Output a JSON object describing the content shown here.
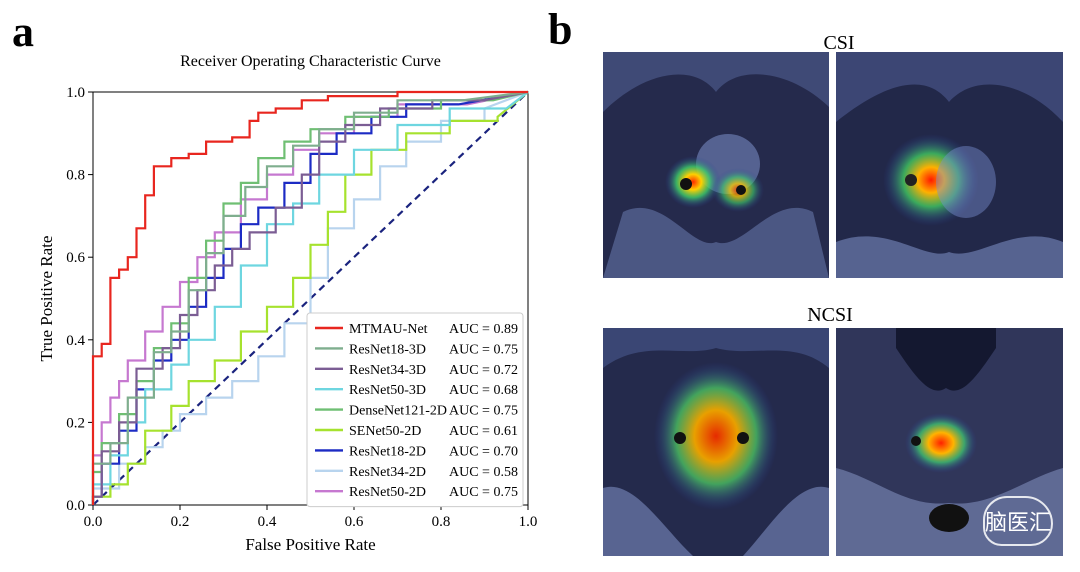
{
  "panel_a": {
    "letter": "a"
  },
  "panel_b": {
    "letter": "b",
    "label_top": "CSI",
    "label_bottom": "NCSI"
  },
  "colors": {
    "MTMAU-Net": "#e8261f",
    "ResNet18-3D": "#7fae8e",
    "ResNet34-3D": "#7b5d94",
    "ResNet50-3D": "#6ed6e0",
    "DenseNet121-2D": "#6fbf73",
    "SENet50-2D": "#a6e22e",
    "ResNet18-2D": "#1c2bc4",
    "ResNet34-2D": "#b8d4ee",
    "ResNet50-2D": "#c678d0",
    "chance": "#1a237e"
  },
  "watermark": "脑医汇",
  "chart_data": {
    "type": "line",
    "title": "Receiver Operating Characteristic Curve",
    "xlabel": "False Positive Rate",
    "ylabel": "True Positive Rate",
    "xlim": [
      0,
      1.0
    ],
    "ylim": [
      0,
      1.0
    ],
    "xticks": [
      "0.0",
      "0.2",
      "0.4",
      "0.6",
      "0.8",
      "1.0"
    ],
    "yticks": [
      "0.0",
      "0.2",
      "0.4",
      "0.6",
      "0.8",
      "1.0"
    ],
    "grid": false,
    "legend_position": "lower-right",
    "series": [
      {
        "name": "MTMAU-Net",
        "auc": "AUC = 0.89",
        "x": [
          0,
          0,
          0.02,
          0.02,
          0.04,
          0.04,
          0.06,
          0.06,
          0.08,
          0.08,
          0.1,
          0.1,
          0.12,
          0.12,
          0.14,
          0.14,
          0.18,
          0.18,
          0.22,
          0.22,
          0.26,
          0.26,
          0.32,
          0.32,
          0.36,
          0.36,
          0.38,
          0.38,
          0.42,
          0.42,
          0.48,
          0.48,
          0.54,
          0.54,
          0.6,
          0.6,
          0.7,
          0.7,
          0.85,
          1.0
        ],
        "y": [
          0,
          0.36,
          0.36,
          0.39,
          0.39,
          0.55,
          0.55,
          0.57,
          0.57,
          0.6,
          0.6,
          0.67,
          0.67,
          0.75,
          0.75,
          0.82,
          0.82,
          0.84,
          0.84,
          0.85,
          0.85,
          0.88,
          0.88,
          0.89,
          0.89,
          0.93,
          0.93,
          0.95,
          0.95,
          0.96,
          0.96,
          0.98,
          0.98,
          0.99,
          0.99,
          0.99,
          0.99,
          1.0,
          1.0,
          1.0
        ]
      },
      {
        "name": "ResNet18-3D",
        "auc": "AUC = 0.75",
        "x": [
          0,
          0,
          0.04,
          0.04,
          0.08,
          0.08,
          0.14,
          0.14,
          0.18,
          0.18,
          0.22,
          0.22,
          0.26,
          0.26,
          0.3,
          0.3,
          0.35,
          0.35,
          0.4,
          0.4,
          0.46,
          0.46,
          0.52,
          0.52,
          0.6,
          0.6,
          0.7,
          0.7,
          0.85,
          1.0
        ],
        "y": [
          0,
          0.1,
          0.1,
          0.15,
          0.15,
          0.26,
          0.26,
          0.37,
          0.37,
          0.42,
          0.42,
          0.52,
          0.52,
          0.61,
          0.61,
          0.7,
          0.7,
          0.77,
          0.77,
          0.82,
          0.82,
          0.87,
          0.87,
          0.91,
          0.91,
          0.95,
          0.95,
          0.98,
          0.98,
          1.0
        ]
      },
      {
        "name": "ResNet34-3D",
        "auc": "AUC = 0.72",
        "x": [
          0,
          0,
          0.02,
          0.02,
          0.06,
          0.06,
          0.1,
          0.1,
          0.16,
          0.16,
          0.2,
          0.2,
          0.24,
          0.24,
          0.28,
          0.28,
          0.32,
          0.32,
          0.36,
          0.36,
          0.42,
          0.42,
          0.48,
          0.48,
          0.52,
          0.52,
          0.58,
          0.58,
          0.66,
          0.66,
          0.78,
          0.78,
          0.9,
          1.0
        ],
        "y": [
          0,
          0.02,
          0.02,
          0.13,
          0.13,
          0.2,
          0.2,
          0.33,
          0.33,
          0.38,
          0.38,
          0.46,
          0.46,
          0.52,
          0.52,
          0.58,
          0.58,
          0.62,
          0.62,
          0.66,
          0.66,
          0.72,
          0.72,
          0.8,
          0.8,
          0.88,
          0.88,
          0.92,
          0.92,
          0.96,
          0.96,
          0.98,
          0.98,
          1.0
        ]
      },
      {
        "name": "ResNet50-3D",
        "auc": "AUC = 0.68",
        "x": [
          0,
          0,
          0.04,
          0.04,
          0.08,
          0.08,
          0.12,
          0.12,
          0.18,
          0.18,
          0.22,
          0.22,
          0.28,
          0.28,
          0.34,
          0.34,
          0.4,
          0.4,
          0.46,
          0.46,
          0.52,
          0.52,
          0.6,
          0.6,
          0.7,
          0.7,
          0.82,
          0.82,
          0.95,
          1.0
        ],
        "y": [
          0,
          0.05,
          0.05,
          0.12,
          0.12,
          0.2,
          0.2,
          0.28,
          0.28,
          0.34,
          0.34,
          0.4,
          0.4,
          0.48,
          0.48,
          0.58,
          0.58,
          0.68,
          0.68,
          0.73,
          0.73,
          0.8,
          0.8,
          0.86,
          0.86,
          0.92,
          0.92,
          0.96,
          0.96,
          1.0
        ]
      },
      {
        "name": "DenseNet121-2D",
        "auc": "AUC = 0.75",
        "x": [
          0,
          0,
          0.02,
          0.02,
          0.06,
          0.06,
          0.1,
          0.1,
          0.14,
          0.14,
          0.18,
          0.18,
          0.22,
          0.22,
          0.26,
          0.26,
          0.3,
          0.3,
          0.34,
          0.34,
          0.38,
          0.38,
          0.44,
          0.44,
          0.5,
          0.5,
          0.58,
          0.58,
          0.68,
          0.68,
          0.8,
          0.8,
          0.92,
          1.0
        ],
        "y": [
          0,
          0.08,
          0.08,
          0.15,
          0.15,
          0.22,
          0.22,
          0.3,
          0.3,
          0.38,
          0.38,
          0.44,
          0.44,
          0.55,
          0.55,
          0.64,
          0.64,
          0.73,
          0.73,
          0.78,
          0.78,
          0.84,
          0.84,
          0.88,
          0.88,
          0.91,
          0.91,
          0.94,
          0.94,
          0.96,
          0.96,
          0.98,
          0.98,
          1.0
        ]
      },
      {
        "name": "SENet50-2D",
        "auc": "AUC = 0.61",
        "x": [
          0,
          0,
          0.04,
          0.04,
          0.08,
          0.08,
          0.12,
          0.12,
          0.18,
          0.18,
          0.22,
          0.22,
          0.28,
          0.28,
          0.34,
          0.34,
          0.4,
          0.4,
          0.46,
          0.46,
          0.5,
          0.5,
          0.54,
          0.54,
          0.58,
          0.58,
          0.64,
          0.64,
          0.72,
          0.72,
          0.82,
          0.82,
          0.93,
          0.93,
          1.0
        ],
        "y": [
          0,
          0.02,
          0.02,
          0.05,
          0.05,
          0.1,
          0.1,
          0.18,
          0.18,
          0.24,
          0.24,
          0.3,
          0.3,
          0.35,
          0.35,
          0.42,
          0.42,
          0.48,
          0.48,
          0.55,
          0.55,
          0.63,
          0.63,
          0.71,
          0.71,
          0.8,
          0.8,
          0.86,
          0.86,
          0.9,
          0.9,
          0.93,
          0.93,
          0.94,
          1.0
        ]
      },
      {
        "name": "ResNet18-2D",
        "auc": "AUC = 0.70",
        "x": [
          0,
          0,
          0.02,
          0.02,
          0.06,
          0.06,
          0.1,
          0.1,
          0.14,
          0.14,
          0.18,
          0.18,
          0.22,
          0.22,
          0.26,
          0.26,
          0.3,
          0.3,
          0.34,
          0.34,
          0.38,
          0.38,
          0.44,
          0.44,
          0.5,
          0.5,
          0.56,
          0.56,
          0.64,
          0.64,
          0.72,
          0.72,
          0.84,
          1.0
        ],
        "y": [
          0,
          0.02,
          0.02,
          0.1,
          0.1,
          0.18,
          0.18,
          0.28,
          0.28,
          0.35,
          0.35,
          0.4,
          0.4,
          0.48,
          0.48,
          0.55,
          0.55,
          0.62,
          0.62,
          0.68,
          0.68,
          0.72,
          0.72,
          0.78,
          0.78,
          0.85,
          0.85,
          0.9,
          0.9,
          0.94,
          0.94,
          0.97,
          0.97,
          1.0
        ]
      },
      {
        "name": "ResNet34-2D",
        "auc": "AUC = 0.58",
        "x": [
          0,
          0,
          0.06,
          0.06,
          0.12,
          0.12,
          0.16,
          0.16,
          0.2,
          0.2,
          0.26,
          0.26,
          0.32,
          0.32,
          0.38,
          0.38,
          0.44,
          0.44,
          0.5,
          0.5,
          0.54,
          0.54,
          0.6,
          0.6,
          0.66,
          0.66,
          0.72,
          0.72,
          0.8,
          0.8,
          0.9,
          0.9,
          1.0
        ],
        "y": [
          0,
          0.04,
          0.04,
          0.1,
          0.1,
          0.14,
          0.14,
          0.18,
          0.18,
          0.22,
          0.22,
          0.26,
          0.26,
          0.3,
          0.3,
          0.36,
          0.36,
          0.44,
          0.44,
          0.55,
          0.55,
          0.67,
          0.67,
          0.74,
          0.74,
          0.82,
          0.82,
          0.88,
          0.88,
          0.93,
          0.93,
          0.96,
          1.0
        ]
      },
      {
        "name": "ResNet50-2D",
        "auc": "AUC = 0.75",
        "x": [
          0,
          0,
          0.02,
          0.02,
          0.04,
          0.04,
          0.06,
          0.06,
          0.08,
          0.08,
          0.12,
          0.12,
          0.16,
          0.16,
          0.2,
          0.2,
          0.24,
          0.24,
          0.28,
          0.28,
          0.34,
          0.34,
          0.4,
          0.4,
          0.46,
          0.46,
          0.52,
          0.52,
          0.6,
          0.6,
          0.7,
          0.7,
          0.86,
          1.0
        ],
        "y": [
          0,
          0.12,
          0.12,
          0.2,
          0.2,
          0.26,
          0.26,
          0.3,
          0.3,
          0.35,
          0.35,
          0.42,
          0.42,
          0.48,
          0.48,
          0.54,
          0.54,
          0.6,
          0.6,
          0.66,
          0.66,
          0.74,
          0.74,
          0.8,
          0.8,
          0.86,
          0.86,
          0.9,
          0.9,
          0.94,
          0.94,
          0.97,
          0.97,
          1.0
        ]
      }
    ]
  }
}
